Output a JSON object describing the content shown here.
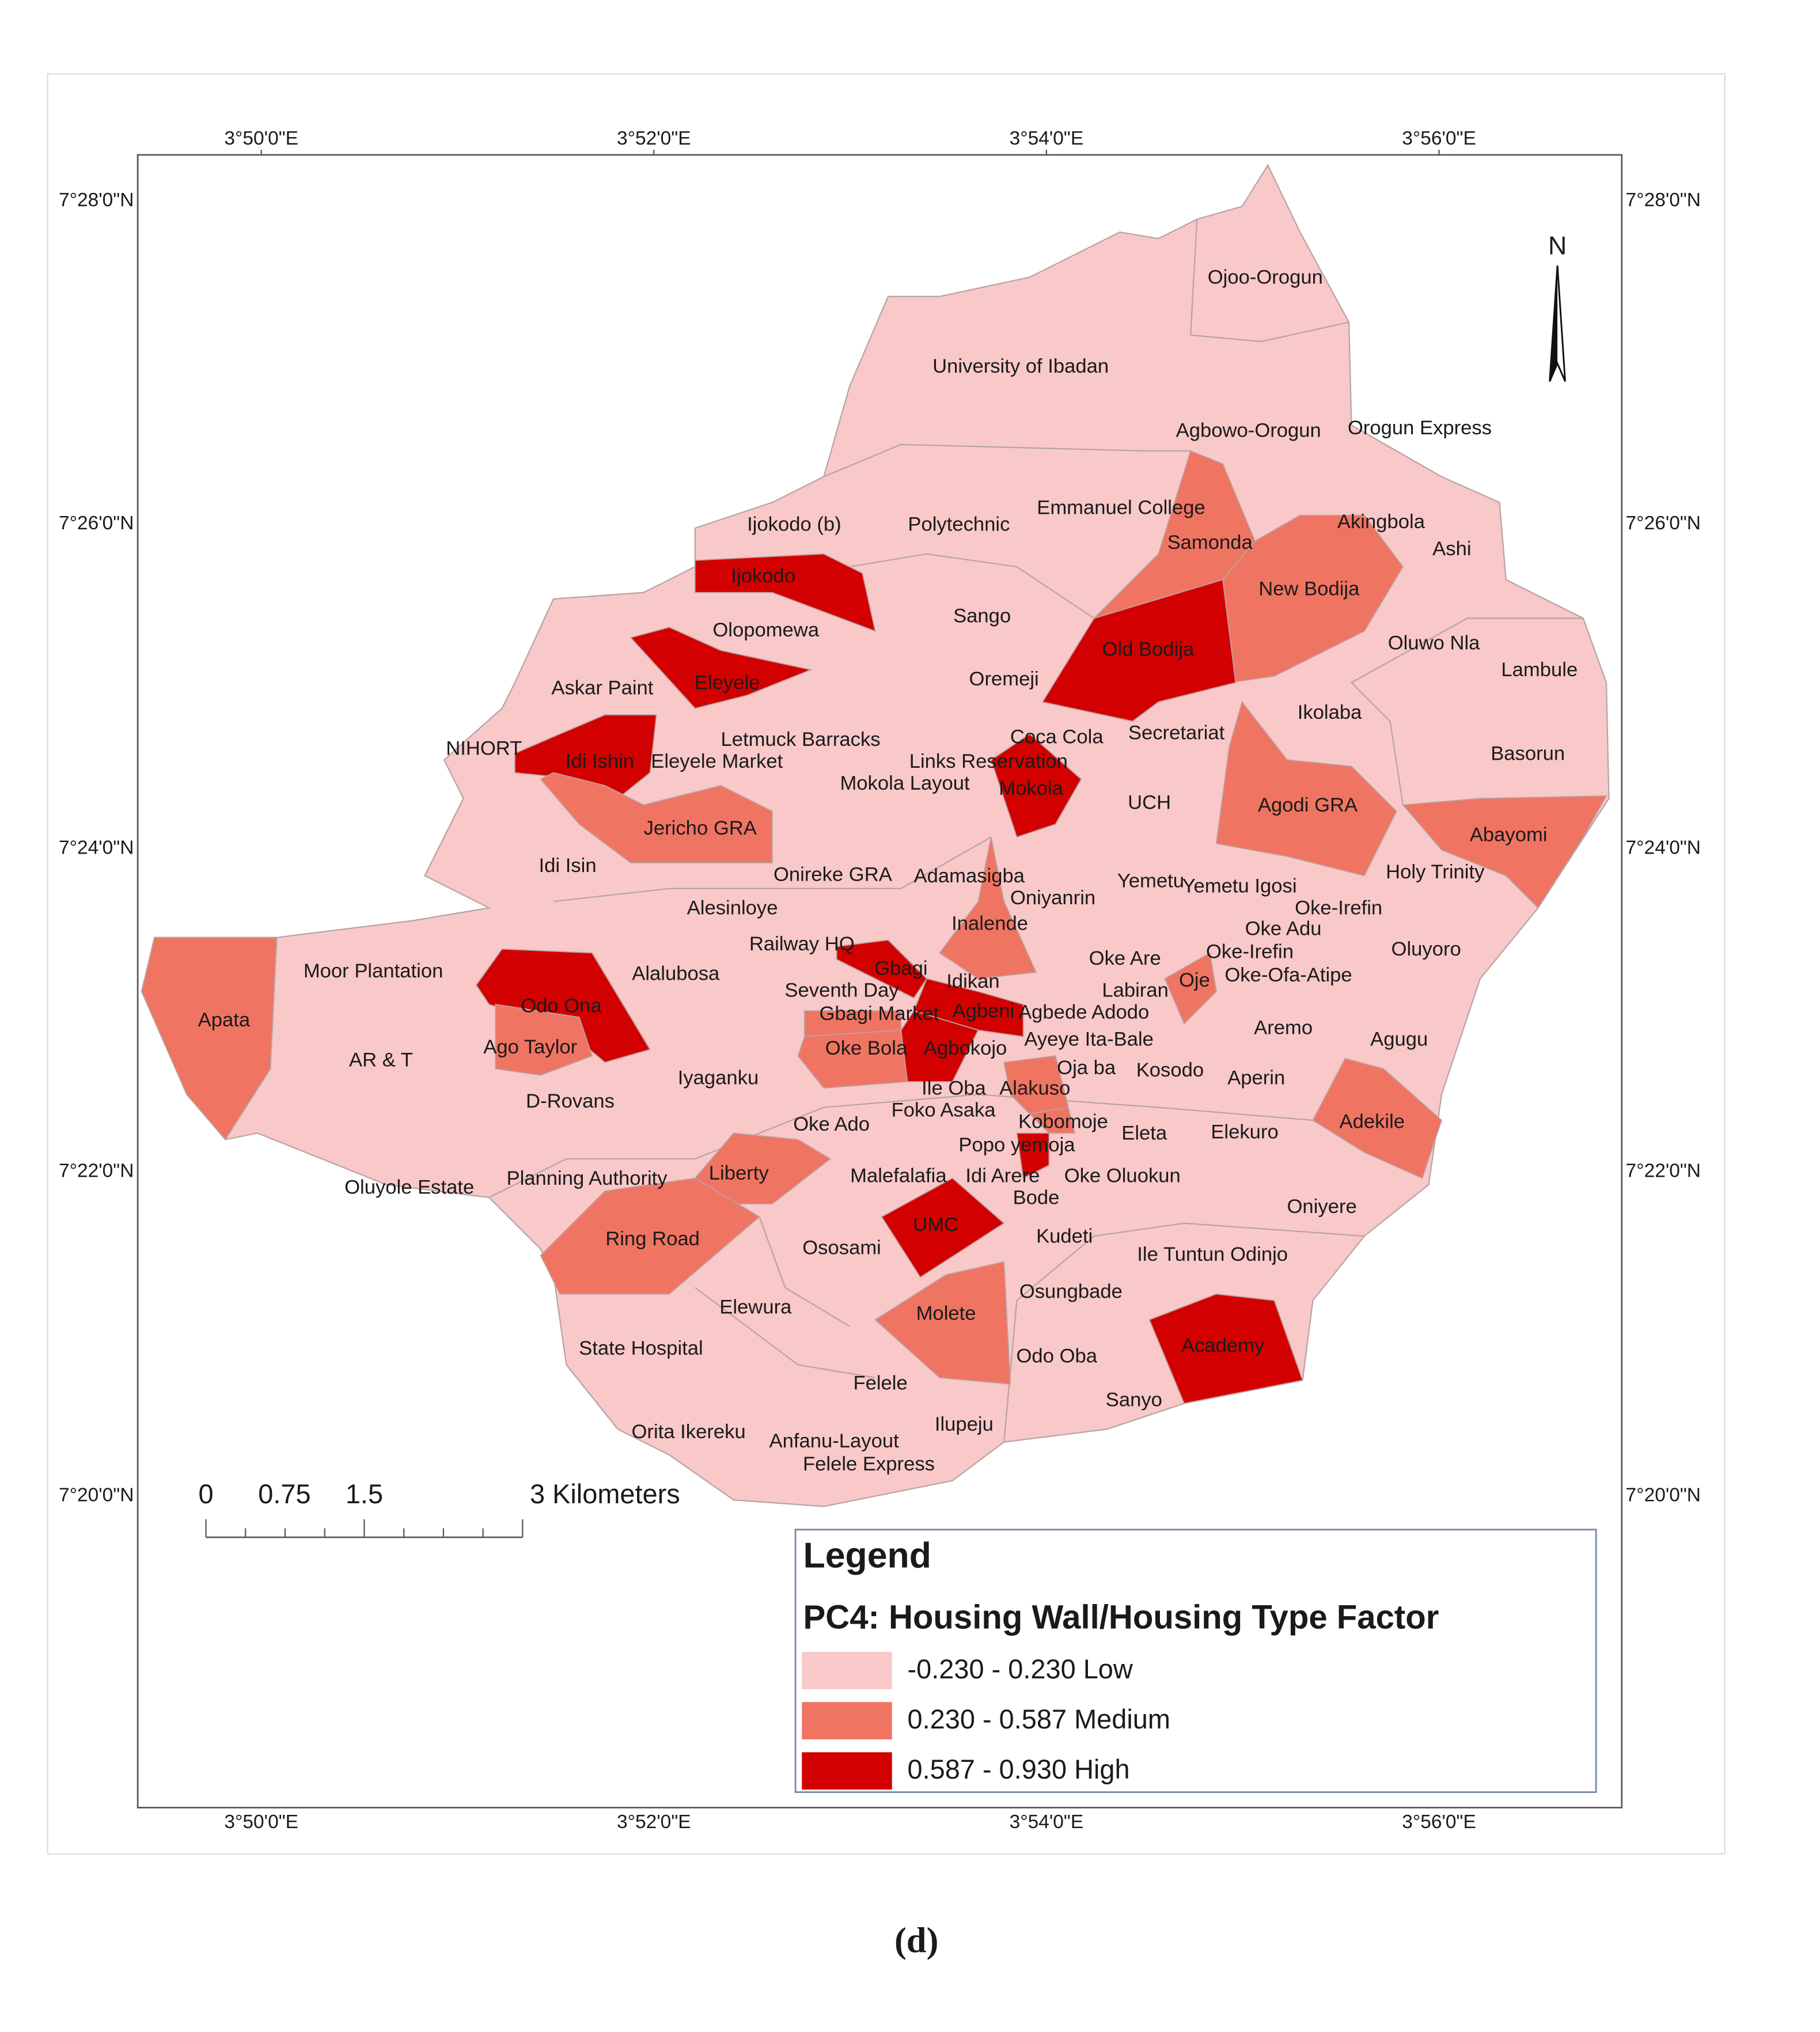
{
  "graticule": {
    "longitudes": [
      "3°50'0\"E",
      "3°52'0\"E",
      "3°54'0\"E",
      "3°56'0\"E"
    ],
    "latitudes": [
      "7°28'0\"N",
      "7°26'0\"N",
      "7°24'0\"N",
      "7°22'0\"N",
      "7°20'0\"N"
    ]
  },
  "north": "N",
  "scale_bar": {
    "labels": [
      "0",
      "0.75",
      "1.5",
      "3 Kilometers"
    ]
  },
  "legend": {
    "title": "Legend",
    "subtitle": "PC4: Housing Wall/Housing Type Factor",
    "classes": [
      {
        "label": "-0.230 - 0.230 Low",
        "color": "#f9c8c8"
      },
      {
        "label": "0.230 - 0.587 Medium",
        "color": "#f07462"
      },
      {
        "label": "0.587 - 0.930 High",
        "color": "#d20000"
      }
    ]
  },
  "regions": [
    {
      "name": "Ojoo-Orogun",
      "class": 0
    },
    {
      "name": "University of Ibadan",
      "class": 0
    },
    {
      "name": "Agbowo-Orogun",
      "class": 0
    },
    {
      "name": "Orogun Express",
      "class": 0
    },
    {
      "name": "Emmanuel College",
      "class": 0
    },
    {
      "name": "Ijokodo (b)",
      "class": 0
    },
    {
      "name": "Polytechnic",
      "class": 0
    },
    {
      "name": "Samonda",
      "class": 1
    },
    {
      "name": "Akingbola",
      "class": 0
    },
    {
      "name": "Ashi",
      "class": 0
    },
    {
      "name": "Ijokodo",
      "class": 2
    },
    {
      "name": "New Bodija",
      "class": 1
    },
    {
      "name": "Sango",
      "class": 0
    },
    {
      "name": "Olopomewa",
      "class": 0
    },
    {
      "name": "Old Bodija",
      "class": 2
    },
    {
      "name": "Oluwo Nla",
      "class": 0
    },
    {
      "name": "Lambule",
      "class": 0
    },
    {
      "name": "Askar Paint",
      "class": 0
    },
    {
      "name": "Eleyele",
      "class": 2
    },
    {
      "name": "Oremeji",
      "class": 0
    },
    {
      "name": "Ikolaba",
      "class": 0
    },
    {
      "name": "Letmuck Barracks",
      "class": 0
    },
    {
      "name": "Coca Cola",
      "class": 0
    },
    {
      "name": "Secretariat",
      "class": 0
    },
    {
      "name": "NIHORT",
      "class": 0
    },
    {
      "name": "Idi Ishin",
      "class": 2
    },
    {
      "name": "Eleyele Market",
      "class": 0
    },
    {
      "name": "Links Reservation",
      "class": 0
    },
    {
      "name": "Basorun",
      "class": 0
    },
    {
      "name": "Mokola Layout",
      "class": 0
    },
    {
      "name": "Mokola",
      "class": 2
    },
    {
      "name": "UCH",
      "class": 0
    },
    {
      "name": "Agodi GRA",
      "class": 1
    },
    {
      "name": "Jericho GRA",
      "class": 1
    },
    {
      "name": "Abayomi",
      "class": 1
    },
    {
      "name": "Idi Isin",
      "class": 0
    },
    {
      "name": "Onireke GRA",
      "class": 0
    },
    {
      "name": "Adamasigba",
      "class": 0
    },
    {
      "name": "Yemetu",
      "class": 0
    },
    {
      "name": "Yemetu Igosi",
      "class": 0
    },
    {
      "name": "Holy Trinity",
      "class": 0
    },
    {
      "name": "Oniyanrin",
      "class": 0
    },
    {
      "name": "Alesinloye",
      "class": 0
    },
    {
      "name": "Oke-Irefin",
      "class": 0
    },
    {
      "name": "Inalende",
      "class": 1
    },
    {
      "name": "Oke Adu",
      "class": 0
    },
    {
      "name": "Railway HQ",
      "class": 0
    },
    {
      "name": "Oke Are",
      "class": 0
    },
    {
      "name": "Oke-Irefin",
      "class": 0
    },
    {
      "name": "Oluyoro",
      "class": 0
    },
    {
      "name": "Moor Plantation",
      "class": 0
    },
    {
      "name": "Gbagi",
      "class": 2
    },
    {
      "name": "Alalubosa",
      "class": 0
    },
    {
      "name": "Idikan",
      "class": 0
    },
    {
      "name": "Oje",
      "class": 1
    },
    {
      "name": "Oke-Ofa-Atipe",
      "class": 0
    },
    {
      "name": "Seventh Day",
      "class": 0
    },
    {
      "name": "Labiran",
      "class": 0
    },
    {
      "name": "Odo Ona",
      "class": 2
    },
    {
      "name": "Agbeni",
      "class": 2
    },
    {
      "name": "Agbede Adodo",
      "class": 0
    },
    {
      "name": "Gbagi Market",
      "class": 1
    },
    {
      "name": "Apata",
      "class": 1
    },
    {
      "name": "Aremo",
      "class": 0
    },
    {
      "name": "Ayeye Ita-Bale",
      "class": 0
    },
    {
      "name": "Agugu",
      "class": 0
    },
    {
      "name": "Ago Taylor",
      "class": 1
    },
    {
      "name": "Oke Bola",
      "class": 1
    },
    {
      "name": "Agbokojo",
      "class": 2
    },
    {
      "name": "AR & T",
      "class": 0
    },
    {
      "name": "Oja ba",
      "class": 0
    },
    {
      "name": "Kosodo",
      "class": 0
    },
    {
      "name": "Iyaganku",
      "class": 0
    },
    {
      "name": "Aperin",
      "class": 0
    },
    {
      "name": "Ile Oba",
      "class": 0
    },
    {
      "name": "Alakuso",
      "class": 1
    },
    {
      "name": "D-Rovans",
      "class": 0
    },
    {
      "name": "Foko Asaka",
      "class": 0
    },
    {
      "name": "Adekile",
      "class": 1
    },
    {
      "name": "Oke Ado",
      "class": 0
    },
    {
      "name": "Kobomoje",
      "class": 1
    },
    {
      "name": "Eleta",
      "class": 0
    },
    {
      "name": "Elekuro",
      "class": 0
    },
    {
      "name": "Popo yemoja",
      "class": 2
    },
    {
      "name": "Liberty",
      "class": 1
    },
    {
      "name": "Malefalafia",
      "class": 0
    },
    {
      "name": "Idi Arere",
      "class": 0
    },
    {
      "name": "Oke Oluokun",
      "class": 0
    },
    {
      "name": "Planning Authority",
      "class": 0
    },
    {
      "name": "Oluyole Estate",
      "class": 0
    },
    {
      "name": "Bode",
      "class": 0
    },
    {
      "name": "Oniyere",
      "class": 0
    },
    {
      "name": "UMC",
      "class": 2
    },
    {
      "name": "Kudeti",
      "class": 0
    },
    {
      "name": "Ring Road",
      "class": 1
    },
    {
      "name": "Ososami",
      "class": 0
    },
    {
      "name": "Ile Tuntun Odinjo",
      "class": 0
    },
    {
      "name": "Osungbade",
      "class": 0
    },
    {
      "name": "Elewura",
      "class": 0
    },
    {
      "name": "Molete",
      "class": 1
    },
    {
      "name": "Academy",
      "class": 2
    },
    {
      "name": "State Hospital",
      "class": 0
    },
    {
      "name": "Odo Oba",
      "class": 0
    },
    {
      "name": "Felele",
      "class": 0
    },
    {
      "name": "Sanyo",
      "class": 0
    },
    {
      "name": "Ilupeju",
      "class": 0
    },
    {
      "name": "Orita Ikereku",
      "class": 0
    },
    {
      "name": "Anfanu-Layout",
      "class": 0
    },
    {
      "name": "Felele Express",
      "class": 0
    }
  ],
  "caption": "(d)"
}
